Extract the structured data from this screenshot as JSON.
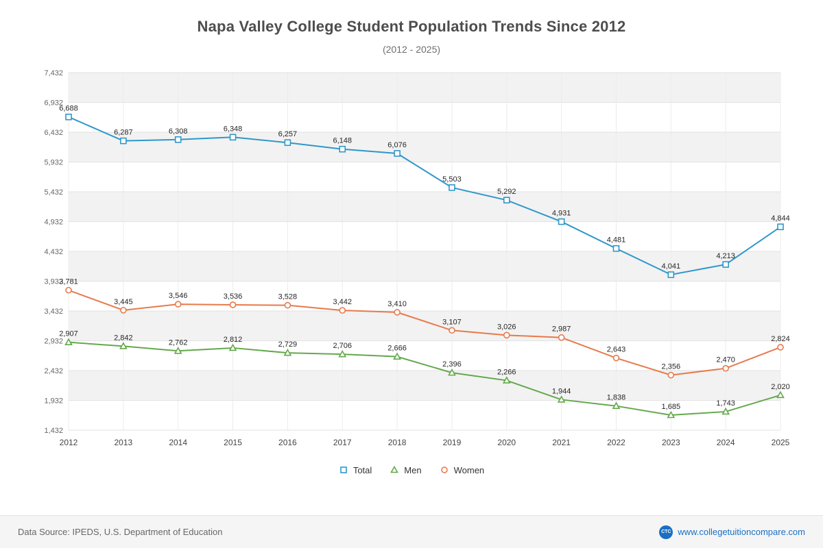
{
  "header": {
    "title": "Napa Valley College Student Population Trends Since 2012",
    "subtitle": "(2012 - 2025)"
  },
  "chart_data": {
    "type": "line",
    "title": "Napa Valley College Student Population Trends Since 2012",
    "subtitle": "(2012 - 2025)",
    "x": [
      2012,
      2013,
      2014,
      2015,
      2016,
      2017,
      2018,
      2019,
      2020,
      2021,
      2022,
      2023,
      2024,
      2025
    ],
    "series": [
      {
        "name": "Total",
        "marker": "square",
        "color": "#2e97cb",
        "values": [
          6688,
          6287,
          6308,
          6348,
          6257,
          6148,
          6076,
          5503,
          5292,
          4931,
          4481,
          4041,
          4213,
          4844
        ]
      },
      {
        "name": "Men",
        "marker": "triangle",
        "color": "#63a84b",
        "values": [
          2907,
          2842,
          2762,
          2812,
          2729,
          2706,
          2666,
          2396,
          2266,
          1944,
          1838,
          1685,
          1743,
          2020
        ]
      },
      {
        "name": "Women",
        "marker": "circle",
        "color": "#e8794a",
        "values": [
          3781,
          3445,
          3546,
          3536,
          3528,
          3442,
          3410,
          3107,
          3026,
          2987,
          2643,
          2356,
          2470,
          2824
        ]
      }
    ],
    "ylim": [
      1432,
      7432
    ],
    "ytick_step": 500,
    "grid": true,
    "band_colors": [
      "#f2f2f2",
      "#ffffff"
    ],
    "gridline_color": "#e2e2e2",
    "vertical_gridline_color": "#ececec",
    "legend_position": "bottom",
    "data_labels": true
  },
  "footer": {
    "source": "Data Source: IPEDS, U.S. Department of Education",
    "website": "www.collegetuitioncompare.com",
    "logo_text": "CTC"
  }
}
